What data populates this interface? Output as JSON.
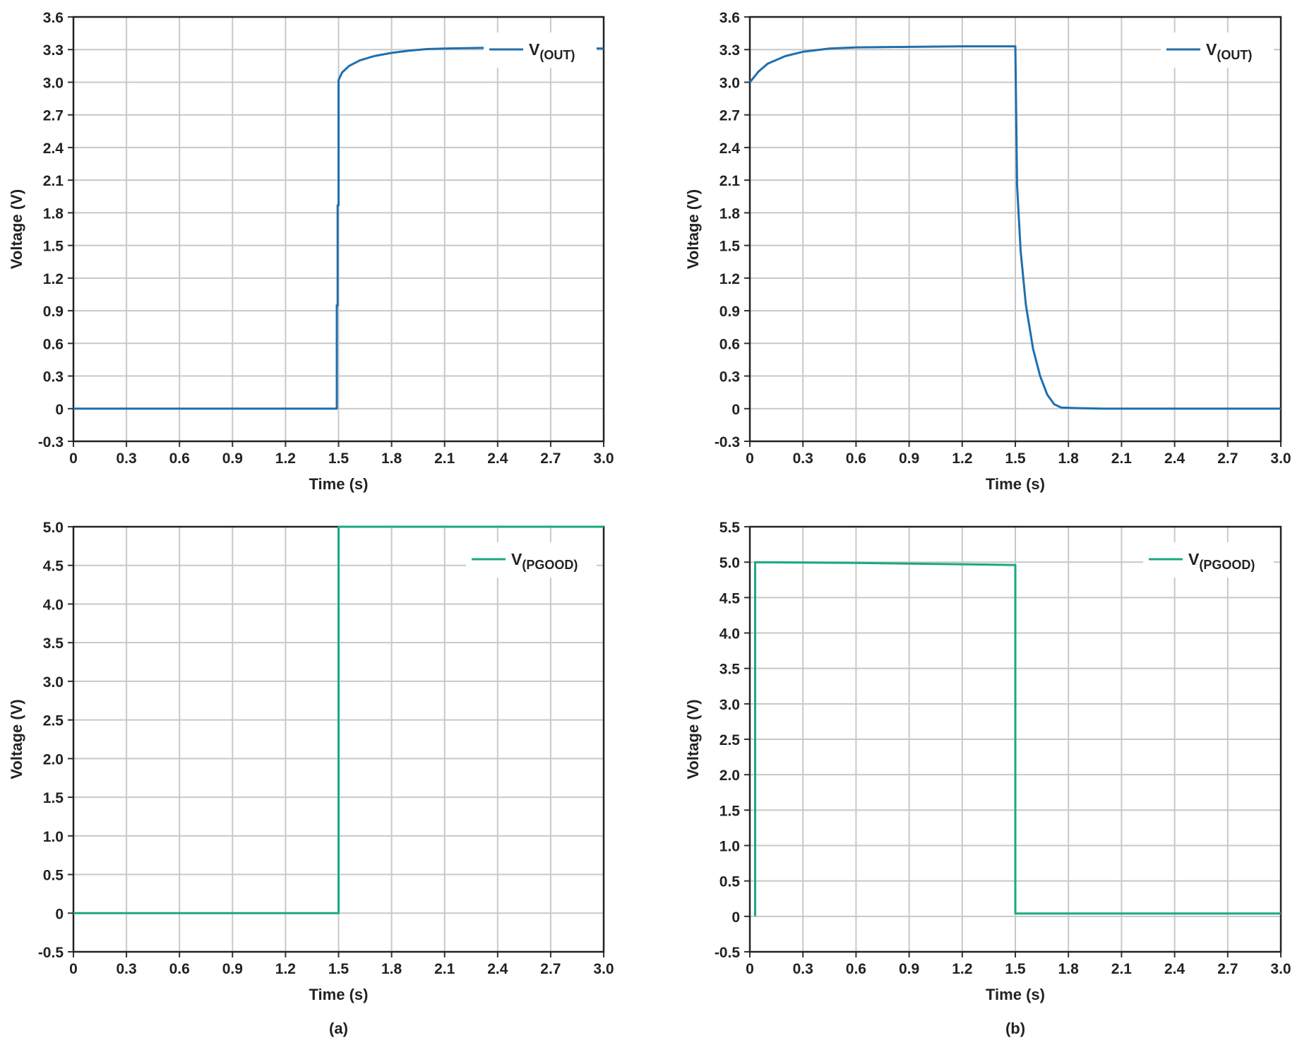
{
  "panel_labels": [
    "(a)",
    "(b)"
  ],
  "chart_data": [
    {
      "type": "line",
      "xlabel": "Time (s)",
      "ylabel": "Voltage (V)",
      "xlim": [
        0,
        3.0
      ],
      "ylim": [
        -0.3,
        3.6
      ],
      "xticks": [
        "0",
        "0.3",
        "0.6",
        "0.9",
        "1.2",
        "1.5",
        "1.8",
        "2.1",
        "2.4",
        "2.7",
        "3.0"
      ],
      "yticks": [
        "-0.3",
        "0",
        "0.3",
        "0.6",
        "0.9",
        "1.2",
        "1.5",
        "1.8",
        "2.1",
        "2.4",
        "2.7",
        "3.0",
        "3.3",
        "3.6"
      ],
      "grid": true,
      "legend_position": "top-right",
      "series": [
        {
          "name": "V",
          "name_sub": "(OUT)",
          "color": "#1f6fae",
          "x": [
            0,
            1.49,
            1.49,
            1.495,
            1.495,
            1.5,
            1.5,
            1.52,
            1.56,
            1.62,
            1.7,
            1.8,
            1.9,
            2.0,
            2.1,
            2.3,
            2.5,
            2.7,
            3.0
          ],
          "y": [
            0,
            0,
            0.95,
            0.95,
            1.87,
            1.87,
            3.02,
            3.09,
            3.15,
            3.2,
            3.24,
            3.27,
            3.29,
            3.305,
            3.31,
            3.315,
            3.315,
            3.315,
            3.31
          ]
        }
      ]
    },
    {
      "type": "line",
      "xlabel": "Time (s)",
      "ylabel": "Voltage (V)",
      "xlim": [
        0,
        3.0
      ],
      "ylim": [
        -0.3,
        3.6
      ],
      "xticks": [
        "0",
        "0.3",
        "0.6",
        "0.9",
        "1.2",
        "1.5",
        "1.8",
        "2.1",
        "2.4",
        "2.7",
        "3.0"
      ],
      "yticks": [
        "-0.3",
        "0",
        "0.3",
        "0.6",
        "0.9",
        "1.2",
        "1.5",
        "1.8",
        "2.1",
        "2.4",
        "2.7",
        "3.0",
        "3.3",
        "3.6"
      ],
      "grid": true,
      "legend_position": "top-right",
      "series": [
        {
          "name": "V",
          "name_sub": "(OUT)",
          "color": "#1f6fae",
          "x": [
            0,
            0.05,
            0.1,
            0.2,
            0.3,
            0.45,
            0.6,
            0.9,
            1.2,
            1.5,
            1.51,
            1.53,
            1.56,
            1.6,
            1.64,
            1.68,
            1.72,
            1.76,
            1.85,
            2.0,
            2.5,
            3.0
          ],
          "y": [
            3.0,
            3.1,
            3.17,
            3.24,
            3.28,
            3.31,
            3.32,
            3.325,
            3.33,
            3.33,
            2.05,
            1.45,
            0.95,
            0.55,
            0.3,
            0.13,
            0.04,
            0.01,
            0.005,
            0.0,
            0.0,
            0.0
          ]
        }
      ]
    },
    {
      "type": "line",
      "xlabel": "Time (s)",
      "ylabel": "Voltage (V)",
      "xlim": [
        0,
        3.0
      ],
      "ylim": [
        -0.5,
        5.0
      ],
      "xticks": [
        "0",
        "0.3",
        "0.6",
        "0.9",
        "1.2",
        "1.5",
        "1.8",
        "2.1",
        "2.4",
        "2.7",
        "3.0"
      ],
      "yticks": [
        "-0.5",
        "0",
        "0.5",
        "1.0",
        "1.5",
        "2.0",
        "2.5",
        "3.0",
        "3.5",
        "4.0",
        "4.5",
        "5.0"
      ],
      "grid": true,
      "legend_position": "top-right",
      "series": [
        {
          "name": "V",
          "name_sub": "(PGOOD)",
          "color": "#1aa882",
          "x": [
            0,
            1.5,
            1.5,
            3.0
          ],
          "y": [
            0,
            0,
            5.0,
            5.0
          ]
        }
      ]
    },
    {
      "type": "line",
      "xlabel": "Time (s)",
      "ylabel": "Voltage (V)",
      "xlim": [
        0,
        3.0
      ],
      "ylim": [
        -0.5,
        5.5
      ],
      "xticks": [
        "0",
        "0.3",
        "0.6",
        "0.9",
        "1.2",
        "1.5",
        "1.8",
        "2.1",
        "2.4",
        "2.7",
        "3.0"
      ],
      "yticks": [
        "-0.5",
        "0",
        "0.5",
        "1.0",
        "1.5",
        "2.0",
        "2.5",
        "3.0",
        "3.5",
        "4.0",
        "4.5",
        "5.0",
        "5.5"
      ],
      "grid": true,
      "legend_position": "top-right",
      "series": [
        {
          "name": "V",
          "name_sub": "(PGOOD)",
          "color": "#1aa882",
          "x": [
            0.03,
            0.03,
            0.6,
            1.5,
            1.5,
            3.0
          ],
          "y": [
            0,
            5.0,
            4.99,
            4.96,
            0.04,
            0.04
          ]
        }
      ]
    }
  ]
}
